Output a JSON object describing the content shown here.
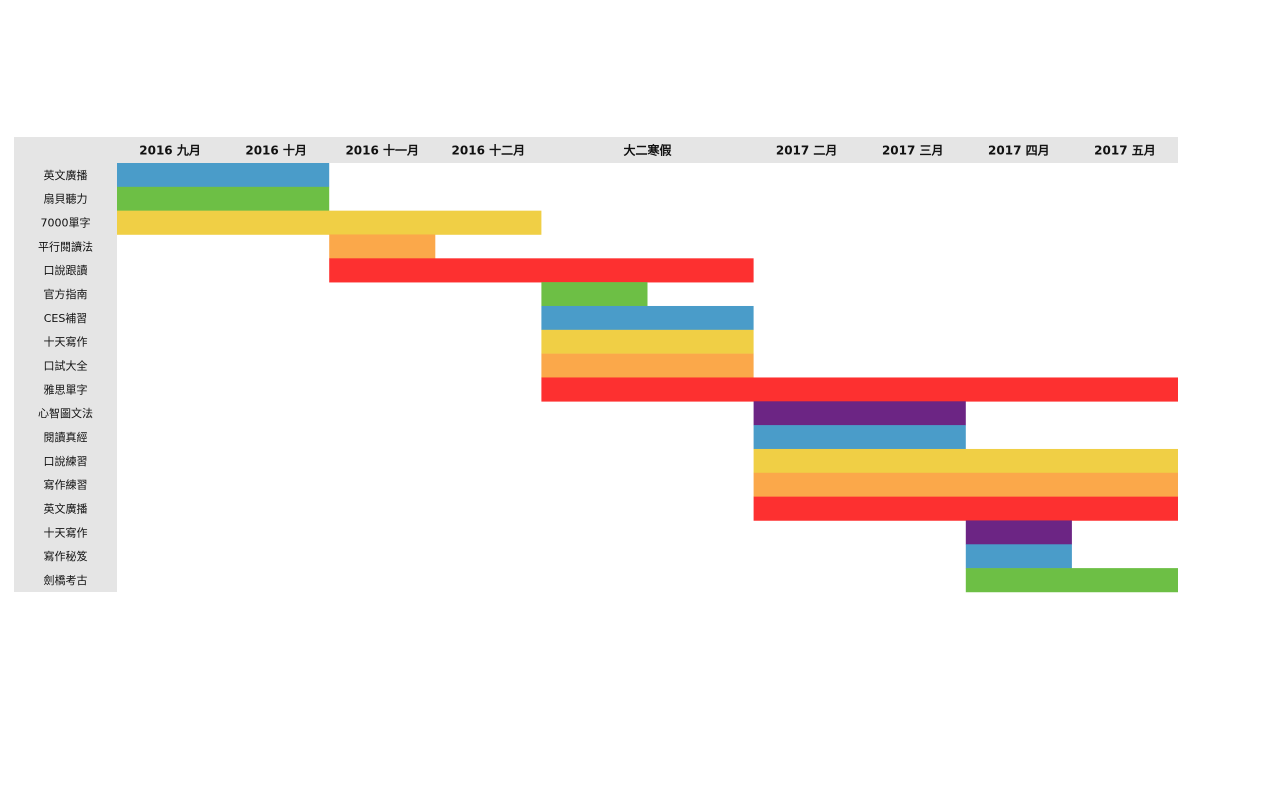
{
  "chart_data": {
    "type": "gantt",
    "categories": [
      "2016 九月",
      "2016 十月",
      "2016 十一月",
      "2016 十二月",
      "大二寒假",
      "2017 二月",
      "2017 三月",
      "2017 四月",
      "2017 五月"
    ],
    "category_spans": [
      1,
      1,
      1,
      1,
      2,
      1,
      1,
      1,
      1
    ],
    "tasks": [
      {
        "name": "英文廣播",
        "color": "#4a9cc9",
        "start": 0,
        "end": 2
      },
      {
        "name": "扇貝聽力",
        "color": "#6dbf45",
        "start": 0,
        "end": 2
      },
      {
        "name": "7000單字",
        "color": "#f0cf45",
        "start": 0,
        "end": 4
      },
      {
        "name": "平行閱讀法",
        "color": "#fba84a",
        "start": 2,
        "end": 3
      },
      {
        "name": "口說跟讀",
        "color": "#fd3030",
        "start": 2,
        "end": 6
      },
      {
        "name": "官方指南",
        "color": "#6dbf45",
        "start": 4,
        "end": 5
      },
      {
        "name": "CES補習",
        "color": "#4a9cc9",
        "start": 4,
        "end": 6
      },
      {
        "name": "十天寫作",
        "color": "#f0cf45",
        "start": 4,
        "end": 6
      },
      {
        "name": "口試大全",
        "color": "#fba84a",
        "start": 4,
        "end": 6
      },
      {
        "name": "雅思單字",
        "color": "#fd3030",
        "start": 4,
        "end": 10
      },
      {
        "name": "心智圖文法",
        "color": "#6c2584",
        "start": 6,
        "end": 8
      },
      {
        "name": "閱讀真經",
        "color": "#4a9cc9",
        "start": 6,
        "end": 8
      },
      {
        "name": "口說練習",
        "color": "#f0cf45",
        "start": 6,
        "end": 10
      },
      {
        "name": "寫作練習",
        "color": "#fba84a",
        "start": 6,
        "end": 10
      },
      {
        "name": "英文廣播",
        "color": "#fd3030",
        "start": 6,
        "end": 10
      },
      {
        "name": "十天寫作",
        "color": "#6c2584",
        "start": 8,
        "end": 9
      },
      {
        "name": "寫作秘笈",
        "color": "#4a9cc9",
        "start": 8,
        "end": 9
      },
      {
        "name": "劍橋考古",
        "color": "#6dbf45",
        "start": 8,
        "end": 10
      }
    ]
  }
}
